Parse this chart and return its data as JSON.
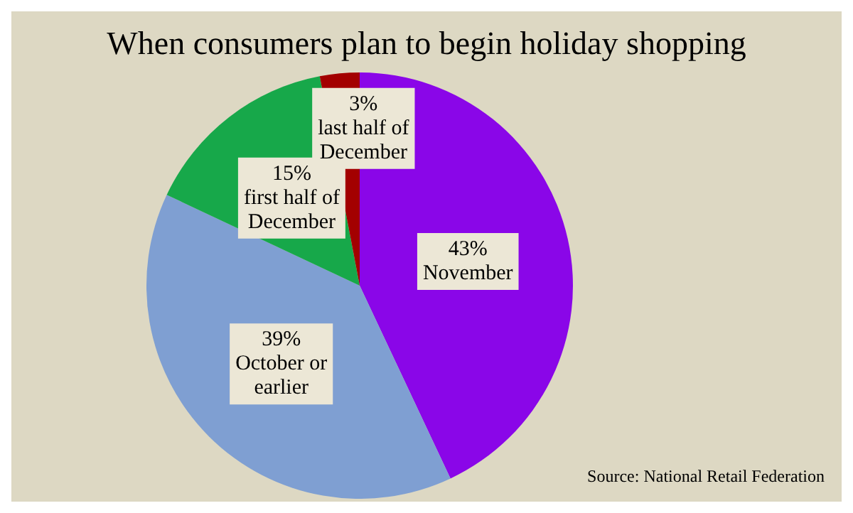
{
  "chart_data": {
    "type": "pie",
    "title": "When consumers plan to begin holiday shopping",
    "categories": [
      "November",
      "October or earlier",
      "first half of December",
      "last half of December"
    ],
    "values": [
      43,
      39,
      15,
      3
    ],
    "value_labels": [
      "43%",
      "39%",
      "15%",
      "3%"
    ],
    "colors": [
      "#8a06e8",
      "#7f9fd2",
      "#17a84a",
      "#a30000"
    ],
    "legend": false,
    "annotations": [
      "Source: National Retail Federation"
    ]
  }
}
